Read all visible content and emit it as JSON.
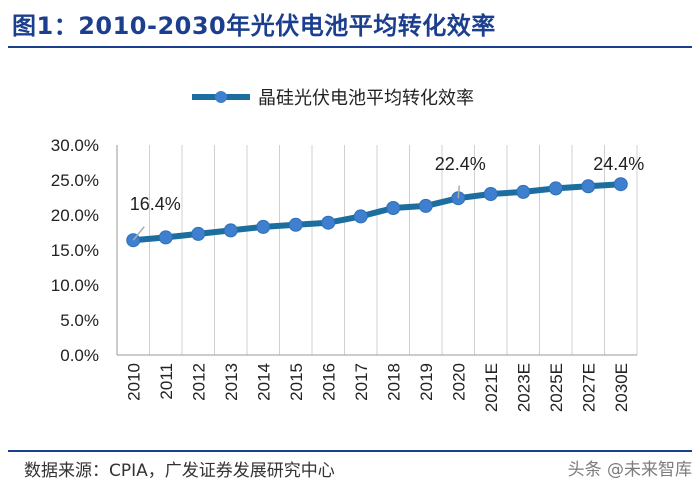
{
  "header": {
    "title": "图1：2010-2030年光伏电池平均转化效率"
  },
  "footer": {
    "source": "数据来源：CPIA，广发证券发展研究中心",
    "watermark": "头条 @未来智库"
  },
  "colors": {
    "line": "#1b6e9e",
    "marker": "#3f7fd0",
    "title": "#1b3f8e",
    "grid": "#d0d0d0"
  },
  "chart_data": {
    "type": "line",
    "categories": [
      "2010",
      "2011",
      "2012",
      "2013",
      "2014",
      "2015",
      "2016",
      "2017",
      "2018",
      "2019",
      "2020",
      "2021E",
      "2023E",
      "2025E",
      "2027E",
      "2030E"
    ],
    "series": [
      {
        "name": "晶硅光伏电池平均转化效率",
        "values": [
          16.4,
          16.8,
          17.3,
          17.8,
          18.3,
          18.6,
          18.9,
          19.8,
          21.0,
          21.3,
          22.4,
          23.0,
          23.3,
          23.8,
          24.1,
          24.4
        ]
      }
    ],
    "ylim": [
      0,
      30
    ],
    "yticks": [
      "0.0%",
      "5.0%",
      "10.0%",
      "15.0%",
      "20.0%",
      "25.0%",
      "30.0%"
    ],
    "annotations": [
      {
        "text": "16.4%",
        "index": 0
      },
      {
        "text": "22.4%",
        "index": 10
      },
      {
        "text": "24.4%",
        "index": 15
      }
    ],
    "grid": "vertical",
    "legend": "top"
  }
}
